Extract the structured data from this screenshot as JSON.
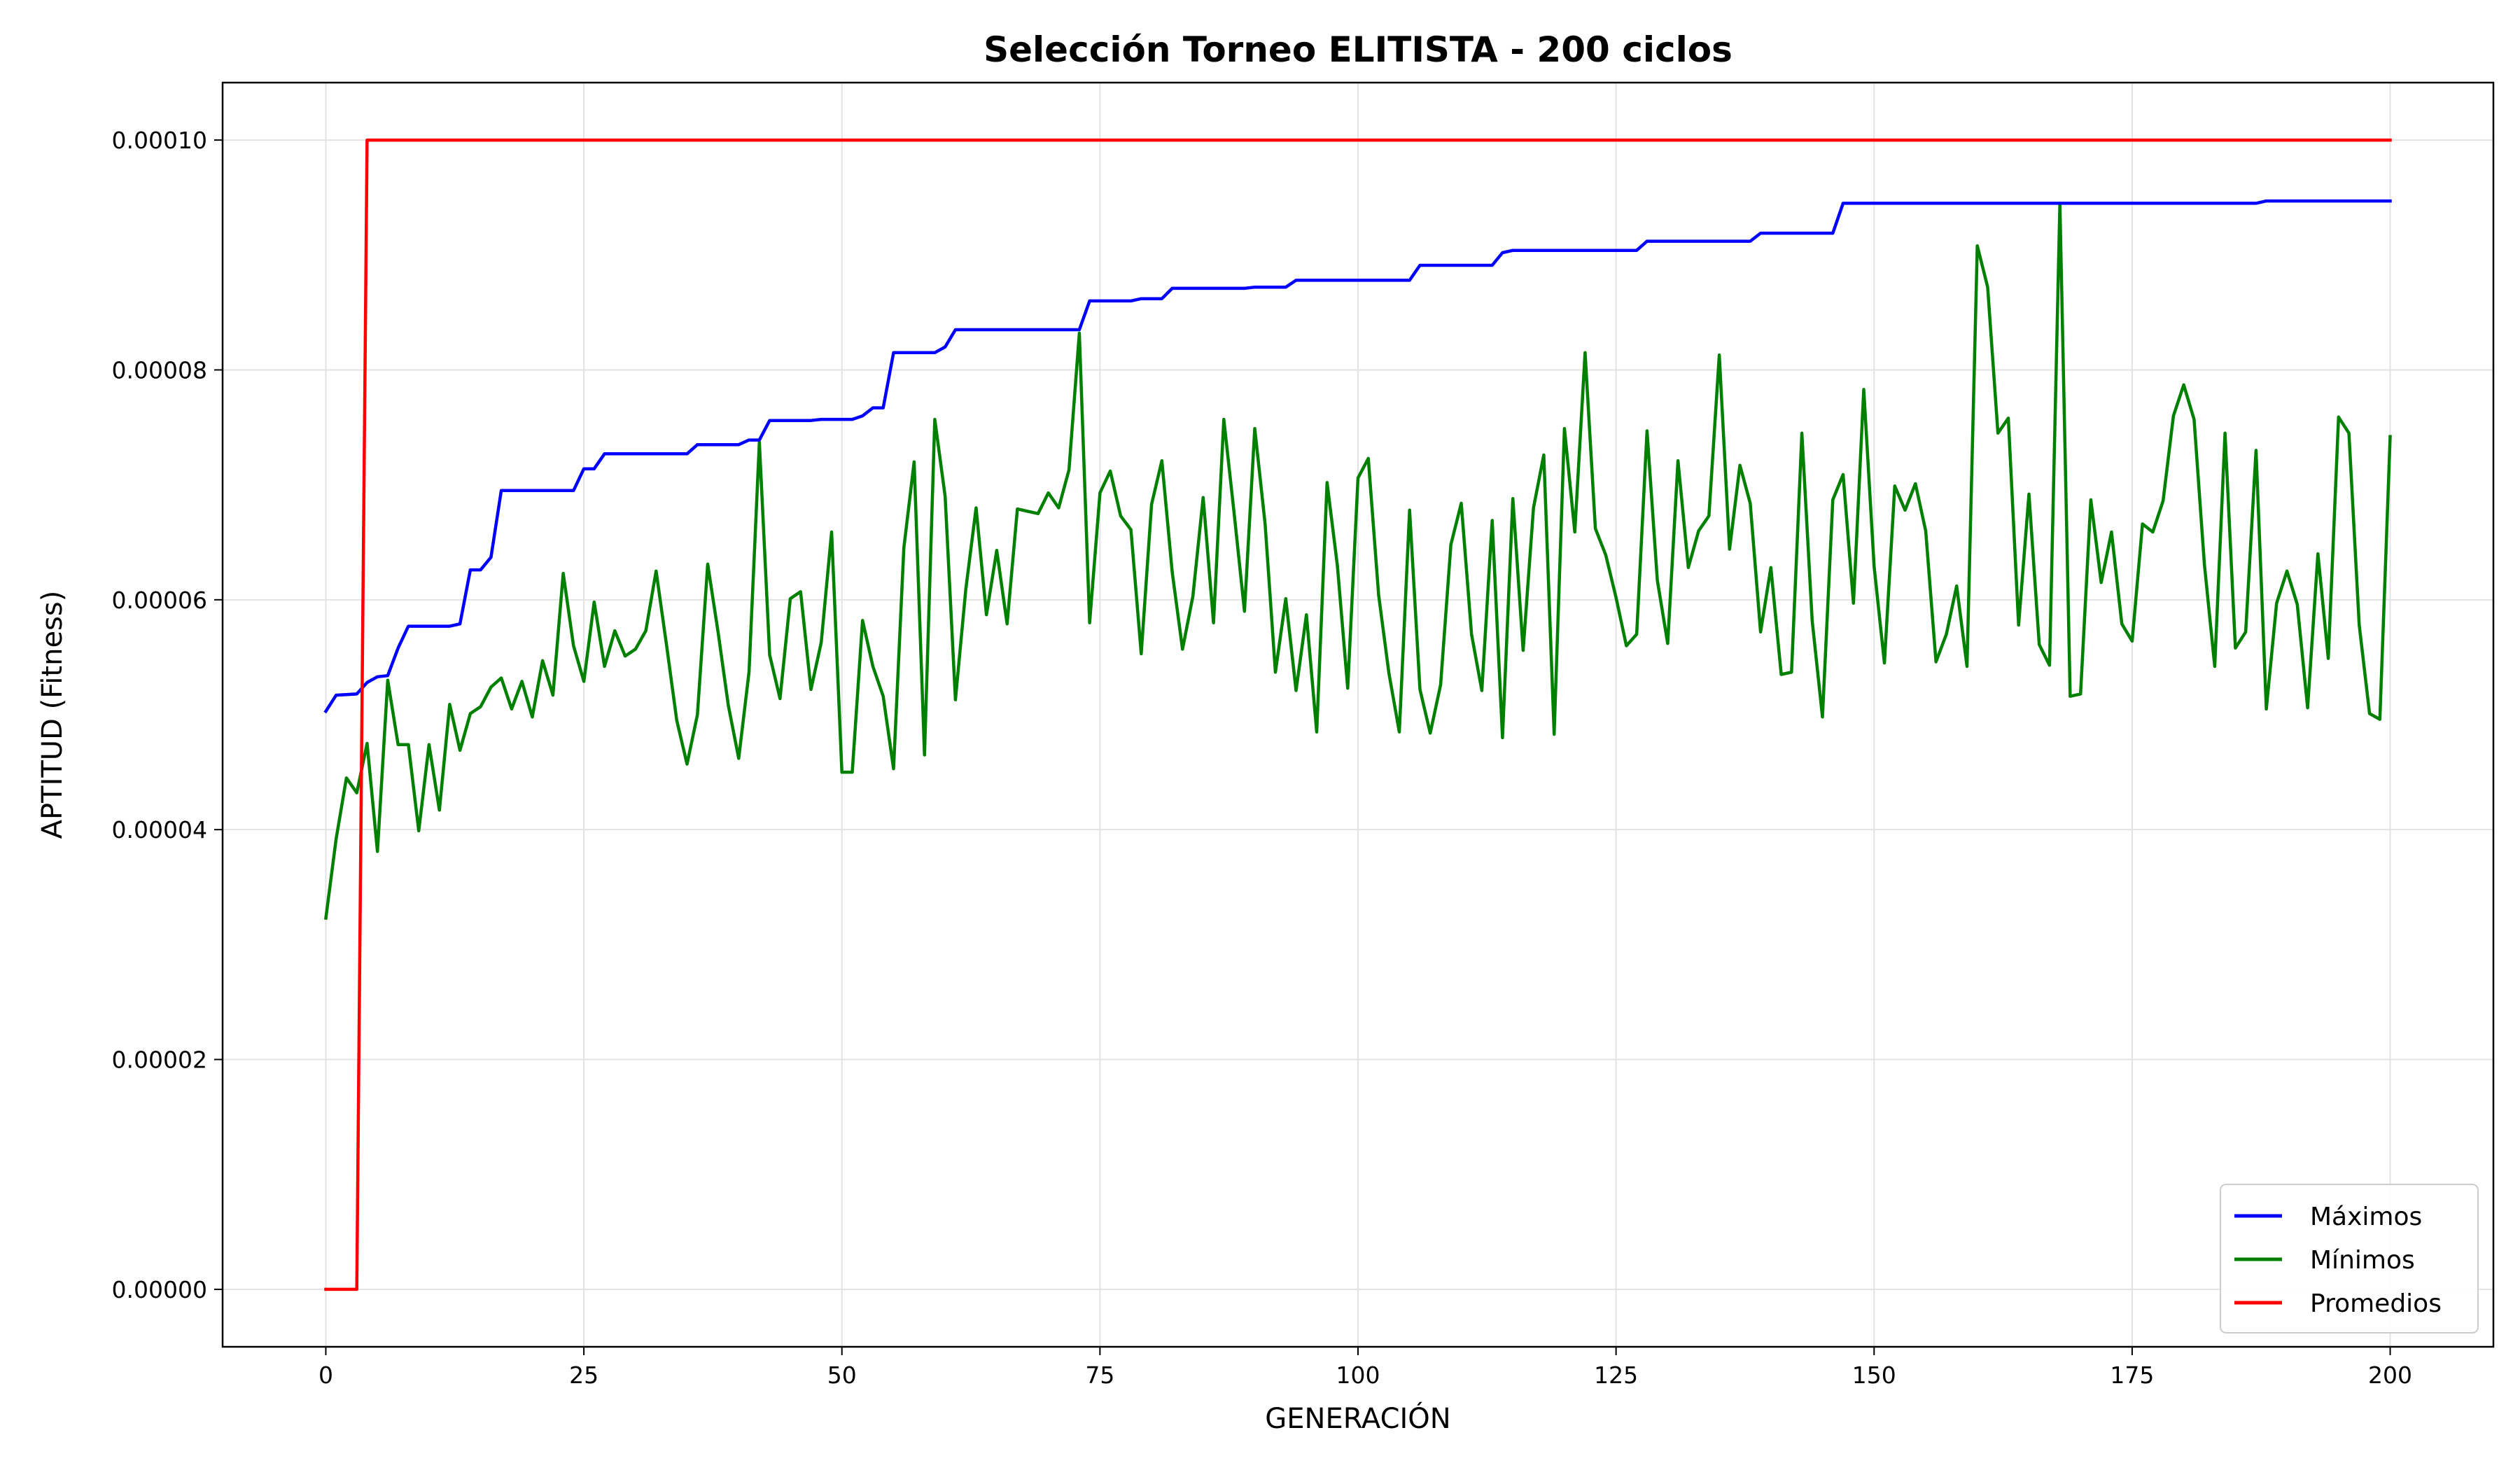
{
  "chart_data": {
    "type": "line",
    "title": "Selección Torneo ELITISTA - 200 ciclos",
    "xlabel": "GENERACIÓN",
    "ylabel": "APTITUD (Fitness)",
    "xlim": [
      -10,
      210
    ],
    "ylim": [
      -5e-06,
      0.000105
    ],
    "xticks": [
      0,
      25,
      50,
      75,
      100,
      125,
      150,
      175,
      200
    ],
    "xtick_labels": [
      "0",
      "25",
      "50",
      "75",
      "100",
      "125",
      "150",
      "175",
      "200"
    ],
    "yticks": [
      0,
      2e-05,
      4e-05,
      6e-05,
      8e-05,
      0.0001
    ],
    "ytick_labels": [
      "0.00000",
      "0.00002",
      "0.00004",
      "0.00006",
      "0.00008",
      "0.00010"
    ],
    "grid": true,
    "legend_position": "bottom-right",
    "series": [
      {
        "name": "Máximos",
        "color": "#0000ff",
        "x": [
          0,
          1,
          3,
          4,
          5,
          6,
          7,
          8,
          12,
          13,
          14,
          15,
          16,
          17,
          24,
          25,
          26,
          27,
          35,
          36,
          40,
          41,
          42,
          43,
          47,
          48,
          51,
          52,
          53,
          54,
          55,
          59,
          60,
          61,
          73,
          74,
          78,
          79,
          81,
          82,
          89,
          90,
          93,
          94,
          105,
          106,
          113,
          114,
          115,
          127,
          128,
          138,
          139,
          146,
          147,
          187,
          188,
          200
        ],
        "y": [
          5.03e-05,
          5.17e-05,
          5.18e-05,
          5.28e-05,
          5.33e-05,
          5.34e-05,
          5.58e-05,
          5.77e-05,
          5.77e-05,
          5.79e-05,
          6.26e-05,
          6.26e-05,
          6.37e-05,
          6.95e-05,
          6.95e-05,
          7.14e-05,
          7.14e-05,
          7.27e-05,
          7.27e-05,
          7.35e-05,
          7.35e-05,
          7.39e-05,
          7.39e-05,
          7.56e-05,
          7.56e-05,
          7.57e-05,
          7.57e-05,
          7.6e-05,
          7.67e-05,
          7.67e-05,
          8.15e-05,
          8.15e-05,
          8.2e-05,
          8.35e-05,
          8.35e-05,
          8.6e-05,
          8.6e-05,
          8.62e-05,
          8.62e-05,
          8.71e-05,
          8.71e-05,
          8.72e-05,
          8.72e-05,
          8.78e-05,
          8.78e-05,
          8.91e-05,
          8.91e-05,
          9.02e-05,
          9.04e-05,
          9.04e-05,
          9.12e-05,
          9.12e-05,
          9.19e-05,
          9.19e-05,
          9.45e-05,
          9.45e-05,
          9.47e-05,
          9.47e-05
        ]
      },
      {
        "name": "Mínimos",
        "color": "#008000",
        "x": [
          0,
          1,
          2,
          3,
          4,
          5,
          6,
          7,
          8,
          9,
          10,
          11,
          12,
          13,
          14,
          15,
          16,
          17,
          18,
          19,
          20,
          21,
          22,
          23,
          24,
          25,
          26,
          27,
          28,
          29,
          30,
          31,
          32,
          33,
          34,
          35,
          36,
          37,
          38,
          39,
          40,
          41,
          42,
          43,
          44,
          45,
          46,
          47,
          48,
          49,
          50,
          51,
          52,
          53,
          54,
          55,
          56,
          57,
          58,
          59,
          60,
          61,
          62,
          63,
          64,
          65,
          66,
          67,
          68,
          69,
          70,
          71,
          72,
          73,
          74,
          75,
          76,
          77,
          78,
          79,
          80,
          81,
          82,
          83,
          84,
          85,
          86,
          87,
          88,
          89,
          90,
          91,
          92,
          93,
          94,
          95,
          96,
          97,
          98,
          99,
          100,
          101,
          102,
          103,
          104,
          105,
          106,
          107,
          108,
          109,
          110,
          111,
          112,
          113,
          114,
          115,
          116,
          117,
          118,
          119,
          120,
          121,
          122,
          123,
          124,
          125,
          126,
          127,
          128,
          129,
          130,
          131,
          132,
          133,
          134,
          135,
          136,
          137,
          138,
          139,
          140,
          141,
          142,
          143,
          144,
          145,
          146,
          147,
          148,
          149,
          150,
          151,
          152,
          153,
          154,
          155,
          156,
          157,
          158,
          159,
          160,
          161,
          162,
          163,
          164,
          165,
          166,
          167,
          168,
          169,
          170,
          171,
          172,
          173,
          174,
          175,
          176,
          177,
          178,
          179,
          180,
          181,
          182,
          183,
          184,
          185,
          186,
          187,
          188,
          189,
          190,
          191,
          192,
          193,
          194,
          195,
          196,
          197,
          198,
          199,
          200
        ],
        "y": [
          3.23e-05,
          3.92e-05,
          4.45e-05,
          4.32e-05,
          4.75e-05,
          3.81e-05,
          5.3e-05,
          4.74e-05,
          4.74e-05,
          3.99e-05,
          4.74e-05,
          4.17e-05,
          5.09e-05,
          4.69e-05,
          5.01e-05,
          5.07e-05,
          5.24e-05,
          5.32e-05,
          5.05e-05,
          5.29e-05,
          4.98e-05,
          5.47e-05,
          5.17e-05,
          6.23e-05,
          5.6e-05,
          5.29e-05,
          5.98e-05,
          5.42e-05,
          5.73e-05,
          5.51e-05,
          5.57e-05,
          5.73e-05,
          6.25e-05,
          5.61e-05,
          4.95e-05,
          4.57e-05,
          5e-05,
          6.31e-05,
          5.72e-05,
          5.08e-05,
          4.62e-05,
          5.37e-05,
          7.37e-05,
          5.52e-05,
          5.14e-05,
          6.01e-05,
          6.07e-05,
          5.22e-05,
          5.63e-05,
          6.59e-05,
          4.5e-05,
          4.5e-05,
          5.82e-05,
          5.42e-05,
          5.16e-05,
          4.53e-05,
          6.45e-05,
          7.2e-05,
          4.65e-05,
          7.57e-05,
          6.9e-05,
          5.13e-05,
          6.09e-05,
          6.8e-05,
          5.87e-05,
          6.43e-05,
          5.79e-05,
          6.79e-05,
          6.77e-05,
          6.75e-05,
          6.93e-05,
          6.8e-05,
          7.13e-05,
          8.32e-05,
          5.8e-05,
          6.93e-05,
          7.12e-05,
          6.73e-05,
          6.61e-05,
          5.53e-05,
          6.83e-05,
          7.21e-05,
          6.24e-05,
          5.57e-05,
          6.03e-05,
          6.89e-05,
          5.8e-05,
          7.57e-05,
          6.75e-05,
          5.9e-05,
          7.49e-05,
          6.66e-05,
          5.37e-05,
          6.01e-05,
          5.21e-05,
          5.87e-05,
          4.85e-05,
          7.02e-05,
          6.3e-05,
          5.23e-05,
          7.06e-05,
          7.23e-05,
          6.04e-05,
          5.36e-05,
          4.85e-05,
          6.78e-05,
          5.22e-05,
          4.84e-05,
          5.26e-05,
          6.48e-05,
          6.84e-05,
          5.7e-05,
          5.21e-05,
          6.69e-05,
          4.8e-05,
          6.88e-05,
          5.56e-05,
          6.8e-05,
          7.26e-05,
          4.83e-05,
          7.49e-05,
          6.59e-05,
          8.15e-05,
          6.62e-05,
          6.39e-05,
          6.02e-05,
          5.6e-05,
          5.7e-05,
          7.47e-05,
          6.17e-05,
          5.62e-05,
          7.21e-05,
          6.28e-05,
          6.6e-05,
          6.73e-05,
          8.13e-05,
          6.44e-05,
          7.17e-05,
          6.84e-05,
          5.72e-05,
          6.28e-05,
          5.35e-05,
          5.37e-05,
          7.45e-05,
          5.82e-05,
          4.98e-05,
          6.87e-05,
          7.09e-05,
          5.97e-05,
          7.83e-05,
          6.29e-05,
          5.45e-05,
          6.99e-05,
          6.78e-05,
          7.01e-05,
          6.6e-05,
          5.46e-05,
          5.7e-05,
          6.12e-05,
          5.42e-05,
          9.08e-05,
          8.72e-05,
          7.45e-05,
          7.58e-05,
          5.78e-05,
          6.92e-05,
          5.61e-05,
          5.43e-05,
          9.45e-05,
          5.16e-05,
          5.18e-05,
          6.87e-05,
          6.15e-05,
          6.59e-05,
          5.79e-05,
          5.64e-05,
          6.66e-05,
          6.59e-05,
          6.86e-05,
          7.6e-05,
          7.87e-05,
          7.57e-05,
          6.31e-05,
          5.42e-05,
          7.45e-05,
          5.58e-05,
          5.72e-05,
          7.3e-05,
          5.05e-05,
          5.97e-05,
          6.25e-05,
          5.96e-05,
          5.06e-05,
          6.4e-05,
          5.49e-05,
          7.59e-05,
          7.45e-05,
          5.78e-05,
          5.01e-05,
          4.96e-05,
          7.42e-05
        ]
      },
      {
        "name": "Promedios",
        "color": "#ff0000",
        "x": [
          0,
          1,
          2,
          3,
          4,
          5,
          10,
          20,
          50,
          100,
          150,
          200
        ],
        "y": [
          0,
          0,
          0,
          0,
          0.0001,
          0.0001,
          0.0001,
          0.0001,
          0.0001,
          0.0001,
          0.0001,
          0.0001
        ]
      }
    ]
  }
}
